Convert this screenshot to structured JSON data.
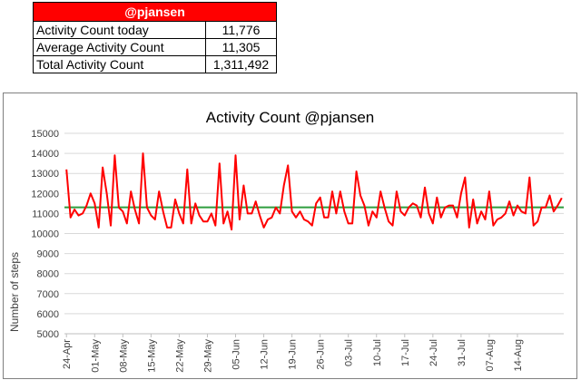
{
  "summary": {
    "header": "@pjansen",
    "rows": [
      {
        "label": "Activity Count today",
        "value": "11,776"
      },
      {
        "label": "Average Activity Count",
        "value": "11,305"
      },
      {
        "label": "Total Activity Count",
        "value": "1,311,492"
      }
    ]
  },
  "colors": {
    "header_bg": "#ff0000",
    "series": "#ff0000",
    "average": "#2e9e3e",
    "grid": "#d9d9d9"
  },
  "chart_data": {
    "type": "line",
    "title": "Activity Count @pjansen",
    "xlabel": "",
    "ylabel": "Number of steps",
    "ylim": [
      5000,
      15000
    ],
    "yticks": [
      5000,
      6000,
      7000,
      8000,
      9000,
      10000,
      11000,
      12000,
      13000,
      14000,
      15000
    ],
    "grid": true,
    "x_start": "24-Apr",
    "x_end": "17-Aug",
    "x_tick_labels": [
      "24-Apr",
      "01-May",
      "08-May",
      "15-May",
      "22-May",
      "29-May",
      "05-Jun",
      "12-Jun",
      "19-Jun",
      "26-Jun",
      "03-Jul",
      "10-Jul",
      "17-Jul",
      "24-Jul",
      "31-Jul",
      "07-Aug",
      "14-Aug"
    ],
    "series": [
      {
        "values": [
          13200,
          10800,
          11200,
          10900,
          11000,
          11400,
          12000,
          11500,
          10300,
          13300,
          12000,
          10400,
          13900,
          11300,
          11100,
          10500,
          12100,
          11200,
          10500,
          14000,
          11300,
          10900,
          10700,
          12100,
          11100,
          10300,
          10300,
          11700,
          11000,
          10500,
          13200,
          10500,
          11500,
          10900,
          10600,
          10600,
          11000,
          10400,
          13500,
          10500,
          11100,
          10200,
          13900,
          10700,
          12400,
          11000,
          11000,
          11600,
          10900,
          10300,
          10700,
          10800,
          11300,
          11000,
          12400,
          13400,
          11100,
          10800,
          11100,
          10700,
          10600,
          10400,
          11500,
          11800,
          10800,
          10800,
          12100,
          11000,
          12100,
          11100,
          10500,
          10500,
          13100,
          11900,
          11400,
          10400,
          11100,
          10800,
          12100,
          11300,
          10600,
          10400,
          12100,
          11100,
          10900,
          11300,
          11500,
          11400,
          10800,
          12300,
          11000,
          10500,
          11800,
          10800,
          11300,
          11400,
          11400,
          10800,
          12000,
          12800,
          10300,
          11700,
          10500,
          11100,
          10700,
          12100,
          10400,
          10700,
          10800,
          11000,
          11600,
          10900,
          11400,
          11100,
          11000,
          12800,
          10400,
          10600,
          11300,
          11300,
          11900,
          11100,
          11400,
          11776
        ]
      },
      {
        "name": "average",
        "values": [
          11305
        ]
      }
    ]
  }
}
